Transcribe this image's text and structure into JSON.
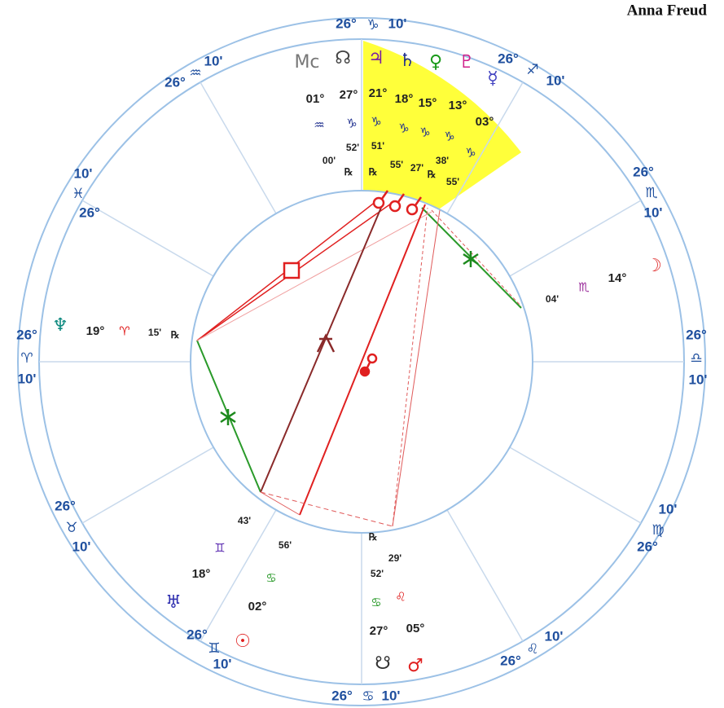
{
  "title": "Anna Freud",
  "cusps": [
    {
      "degree": "26°",
      "sign": "♑",
      "minutes": "10'"
    },
    {
      "degree": "26°",
      "sign": "♐",
      "minutes": "10'"
    },
    {
      "degree": "26°",
      "sign": "♏",
      "minutes": "10'"
    },
    {
      "degree": "26°",
      "sign": "♎",
      "minutes": "10'"
    },
    {
      "degree": "26°",
      "sign": "♍",
      "minutes": "10'"
    },
    {
      "degree": "26°",
      "sign": "♌",
      "minutes": "10'"
    },
    {
      "degree": "26°",
      "sign": "♋",
      "minutes": "10'"
    },
    {
      "degree": "26°",
      "sign": "♊",
      "minutes": "10'"
    },
    {
      "degree": "26°",
      "sign": "♉",
      "minutes": "10'"
    },
    {
      "degree": "26°",
      "sign": "♈",
      "minutes": "10'"
    },
    {
      "degree": "26°",
      "sign": "♓",
      "minutes": "10'"
    },
    {
      "degree": "26°",
      "sign": "♒",
      "minutes": "10'"
    }
  ],
  "points": [
    {
      "glyph": "Mc",
      "degree": "01°",
      "sign": "♒",
      "minutes": "00'"
    },
    {
      "glyph": "☊",
      "degree": "27°",
      "sign": "♑",
      "minutes": "52'",
      "retrograde": "℞"
    },
    {
      "glyph": "♃",
      "degree": "21°",
      "sign": "♑",
      "minutes": "51'",
      "retrograde": "℞"
    },
    {
      "glyph": "♄",
      "degree": "18°",
      "sign": "♑",
      "minutes": "55'"
    },
    {
      "glyph": "♀",
      "degree": "15°",
      "sign": "♑",
      "minutes": "27'"
    },
    {
      "glyph": "♇",
      "degree": "13°",
      "sign": "♑",
      "minutes": "38'",
      "retrograde": "℞"
    },
    {
      "glyph": "☿",
      "degree": "03°",
      "sign": "♑",
      "minutes": "55'"
    },
    {
      "glyph": "☽",
      "degree": "14°",
      "sign": "♏",
      "minutes": "04'"
    },
    {
      "glyph": "♆",
      "degree": "19°",
      "sign": "♈",
      "minutes": "15'",
      "retrograde": "℞"
    },
    {
      "glyph": "♅",
      "degree": "18°",
      "sign": "♊",
      "minutes": "43'"
    },
    {
      "glyph": "☉",
      "degree": "02°",
      "sign": "♋",
      "minutes": "56'"
    },
    {
      "glyph": "☋",
      "degree": "27°",
      "sign": "♋",
      "minutes": "52'",
      "retrograde": "℞"
    },
    {
      "glyph": "♂",
      "degree": "05°",
      "sign": "♌",
      "minutes": "29'"
    }
  ]
}
